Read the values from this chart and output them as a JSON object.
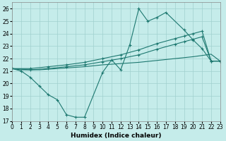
{
  "xlabel": "Humidex (Indice chaleur)",
  "bg_color": "#c5ecea",
  "grid_color": "#a0d0ce",
  "line_color": "#1d7870",
  "xlim": [
    0,
    23
  ],
  "ylim": [
    17,
    26.5
  ],
  "yticks": [
    17,
    18,
    19,
    20,
    21,
    22,
    23,
    24,
    25,
    26
  ],
  "xticks": [
    0,
    1,
    2,
    3,
    4,
    5,
    6,
    7,
    8,
    9,
    10,
    11,
    12,
    13,
    14,
    15,
    16,
    17,
    18,
    19,
    20,
    21,
    22,
    23
  ],
  "curve1_x": [
    0,
    1,
    2,
    3,
    4,
    5,
    6,
    7,
    8,
    10,
    11,
    12,
    13,
    14,
    15,
    16,
    17,
    19,
    20,
    21,
    22,
    23
  ],
  "curve1_y": [
    21.2,
    21.0,
    20.5,
    19.8,
    19.1,
    18.7,
    17.5,
    17.3,
    17.3,
    20.9,
    21.9,
    21.1,
    23.1,
    26.0,
    25.0,
    25.3,
    25.7,
    24.3,
    23.5,
    22.8,
    21.8,
    21.8
  ],
  "line2_x": [
    0,
    2,
    4,
    6,
    8,
    10,
    12,
    14,
    16,
    18,
    19,
    20,
    21,
    22,
    23
  ],
  "line2_y": [
    21.2,
    21.2,
    21.35,
    21.5,
    21.7,
    22.0,
    22.3,
    22.7,
    23.2,
    23.6,
    23.8,
    24.0,
    24.2,
    21.8,
    21.8
  ],
  "line3_x": [
    0,
    2,
    4,
    6,
    8,
    10,
    12,
    14,
    16,
    18,
    19,
    20,
    21,
    22,
    23
  ],
  "line3_y": [
    21.2,
    21.1,
    21.2,
    21.35,
    21.5,
    21.75,
    22.0,
    22.3,
    22.75,
    23.15,
    23.35,
    23.55,
    23.75,
    21.8,
    21.8
  ],
  "line4_x": [
    0,
    1,
    2,
    3,
    4,
    5,
    6,
    8,
    10,
    12,
    14,
    16,
    18,
    20,
    22,
    23
  ],
  "line4_y": [
    21.2,
    21.1,
    21.1,
    21.1,
    21.15,
    21.2,
    21.25,
    21.35,
    21.5,
    21.6,
    21.7,
    21.85,
    22.0,
    22.15,
    22.35,
    21.8
  ]
}
